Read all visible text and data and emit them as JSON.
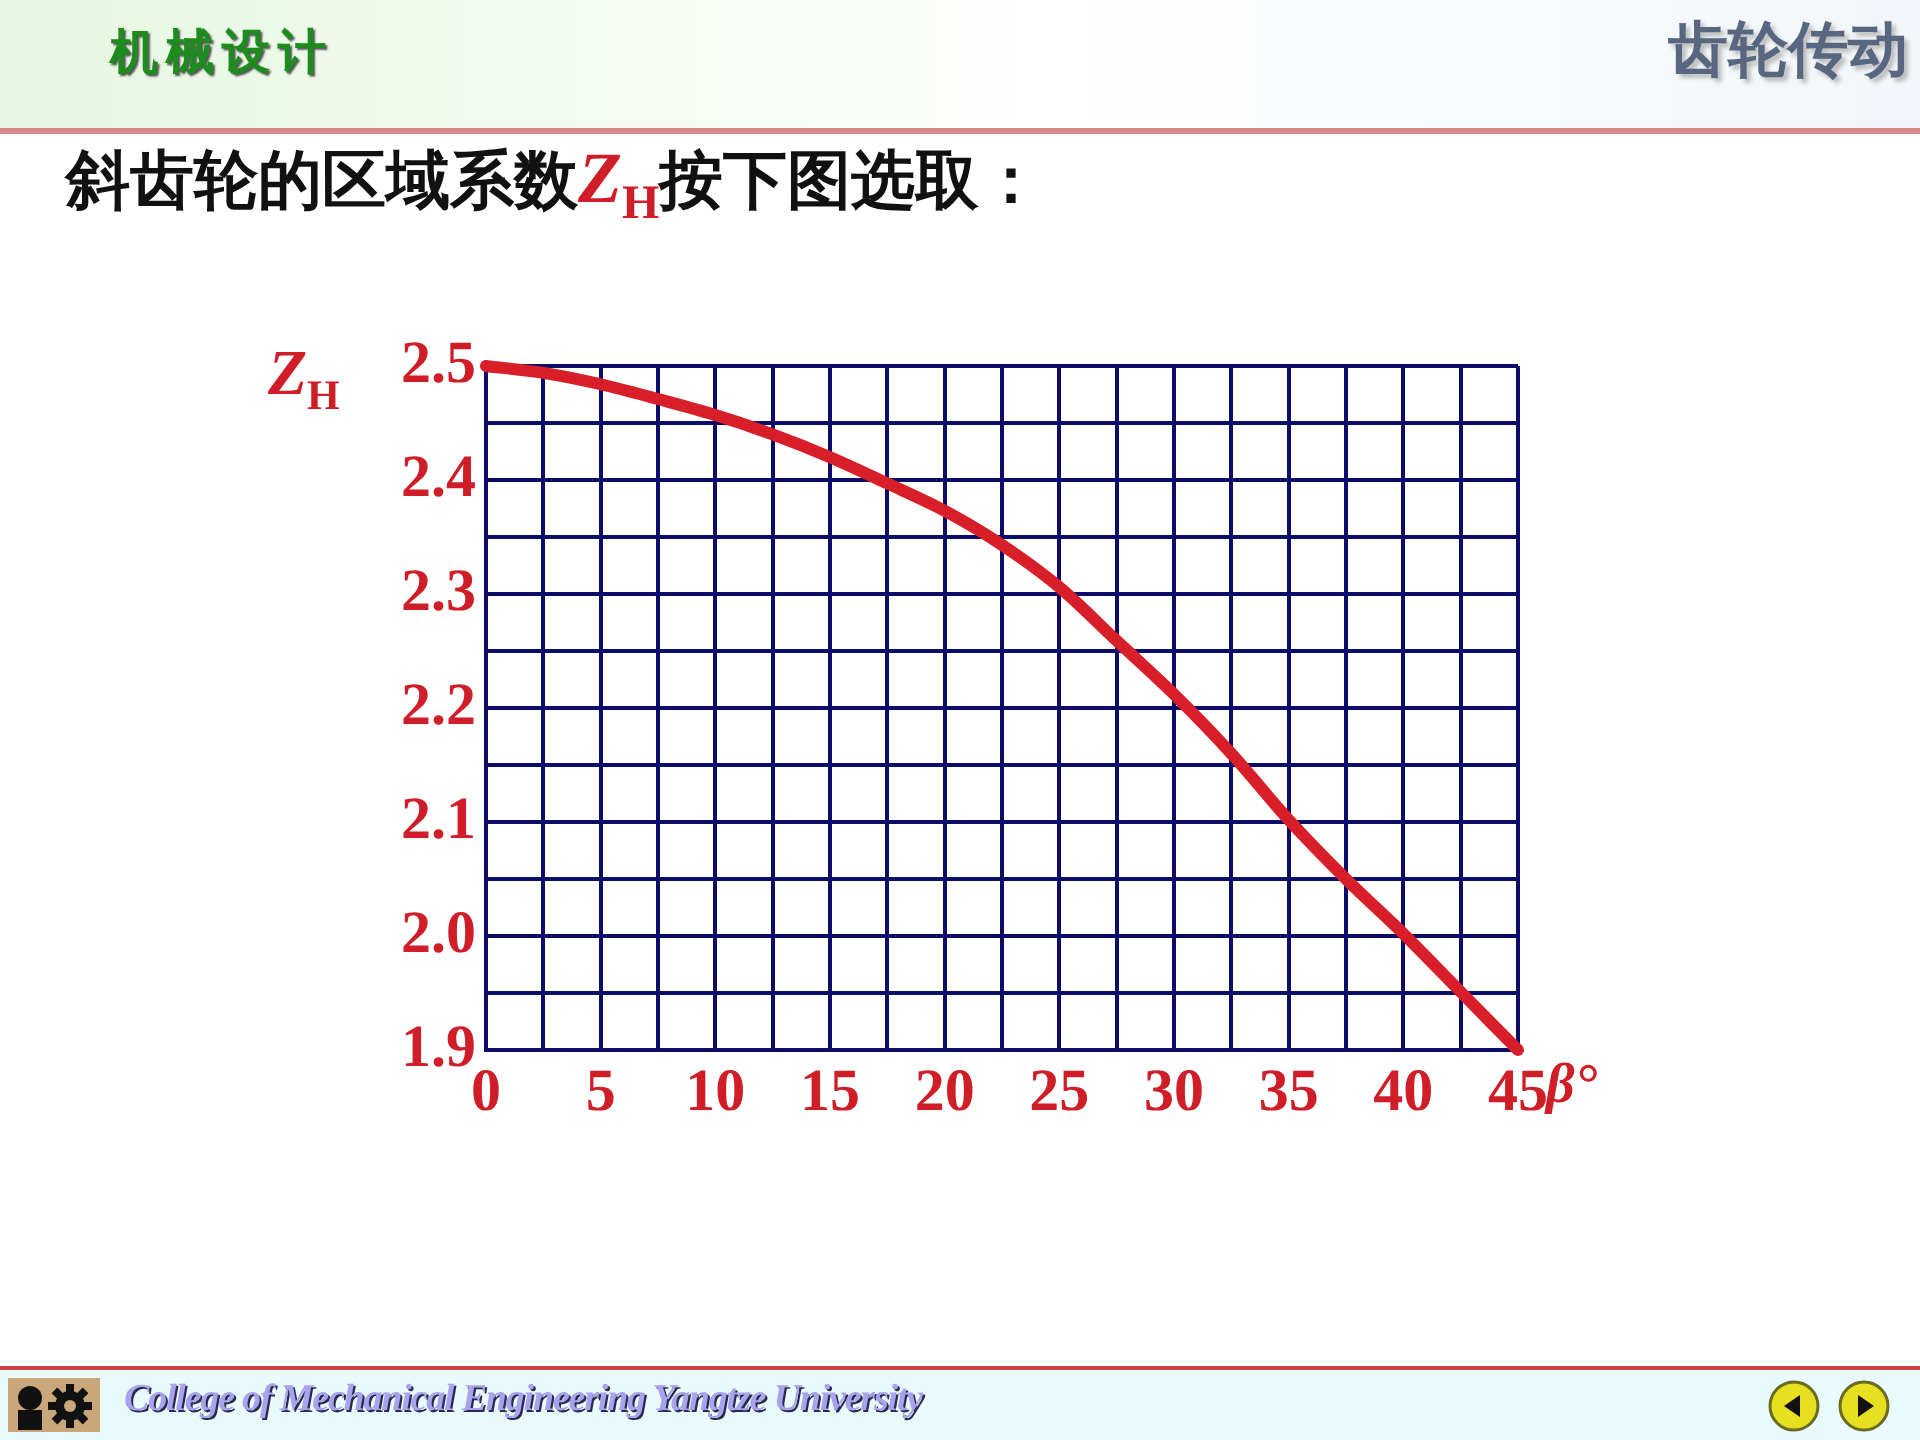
{
  "chart_data": {
    "type": "line",
    "title": "斜齿轮的区域系数Z$_{H}$按下图选取：",
    "xlabel": "β°",
    "ylabel": "Z$_{H}$",
    "annotations": [
      "机械设计",
      "齿轮传动",
      "College of Mechanical Engineering Yangtze University"
    ],
    "x": [
      0,
      2.5,
      5,
      7.5,
      10,
      12.5,
      15,
      17.5,
      20,
      22.5,
      25,
      27.5,
      30,
      32.5,
      35,
      37.5,
      40,
      42.5,
      45
    ],
    "values": [
      2.5,
      2.494,
      2.484,
      2.471,
      2.457,
      2.44,
      2.42,
      2.397,
      2.373,
      2.343,
      2.306,
      2.259,
      2.212,
      2.16,
      2.102,
      2.05,
      2.002,
      1.951,
      1.9
    ],
    "color": "#d81e28",
    "xlim": [
      0,
      45
    ],
    "ylim": [
      1.9,
      2.5
    ],
    "xticks": [
      0,
      {
        "value": 2.5,
        "label": null
      },
      5,
      {
        "value": 7.5,
        "label": null
      },
      10,
      {
        "value": 12.5,
        "label": null
      },
      15,
      {
        "value": 17.5,
        "label": null
      },
      20,
      {
        "value": 22.5,
        "label": null
      },
      25,
      {
        "value": 27.5,
        "label": null
      },
      30,
      {
        "value": 32.5,
        "label": null
      },
      35,
      {
        "value": 37.5,
        "label": null
      },
      40,
      {
        "value": 42.5,
        "label": null
      },
      45
    ],
    "yticks": [
      1.9,
      {
        "value": 1.95,
        "label": null
      },
      {
        "value": 2.0,
        "label": "2.0"
      },
      {
        "value": 2.05,
        "label": null
      },
      2.1,
      {
        "value": 2.15,
        "label": null
      },
      2.2,
      {
        "value": 2.25,
        "label": null
      },
      2.3,
      {
        "value": 2.35,
        "label": null
      },
      2.4,
      {
        "value": 2.45,
        "label": null
      },
      2.5
    ],
    "grid": true,
    "marker": "none",
    "line_style": "solid"
  }
}
